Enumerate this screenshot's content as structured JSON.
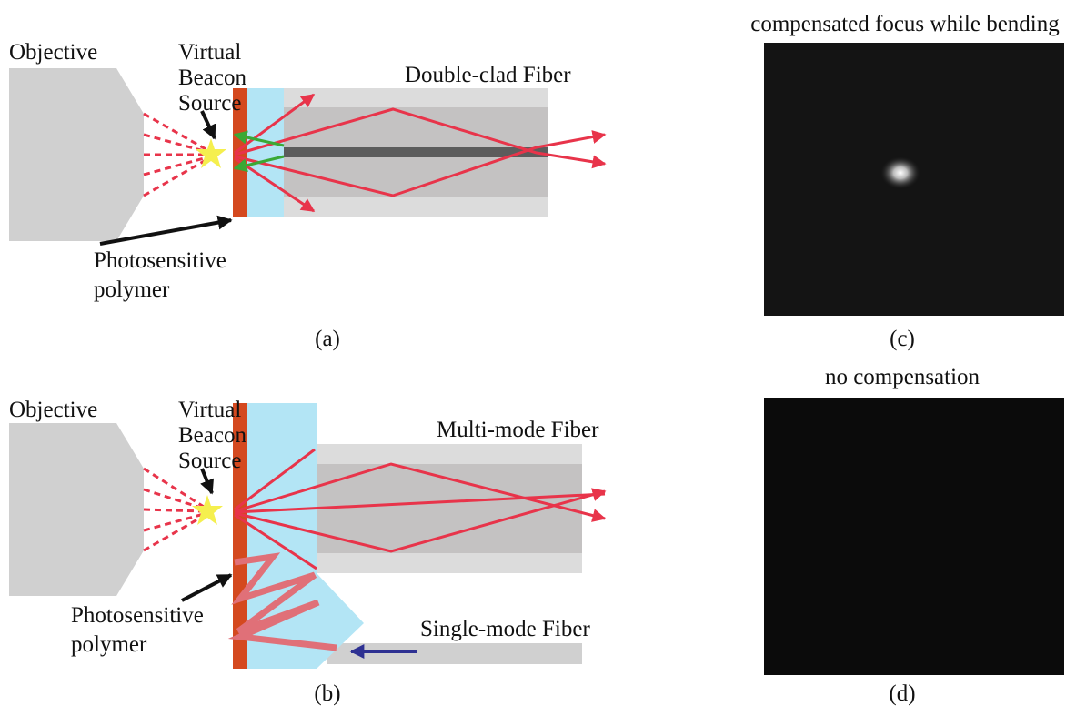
{
  "panels": [
    {
      "label": "(a)",
      "objective": "Objective",
      "beacon": [
        "Virtual",
        "Beacon",
        "Source"
      ],
      "fiber": "Double-clad Fiber",
      "polymer": [
        "Photosensitive",
        "polymer"
      ]
    },
    {
      "label": "(b)",
      "objective": "Objective",
      "beacon": [
        "Virtual",
        "Beacon",
        "Source"
      ],
      "fiber": "Multi-mode Fiber",
      "single_mode": "Single-mode Fiber",
      "polymer": [
        "Photosensitive",
        "polymer"
      ]
    },
    {
      "label": "(c)",
      "title": "compensated focus while bending"
    },
    {
      "label": "(d)",
      "title": "no compensation"
    }
  ]
}
